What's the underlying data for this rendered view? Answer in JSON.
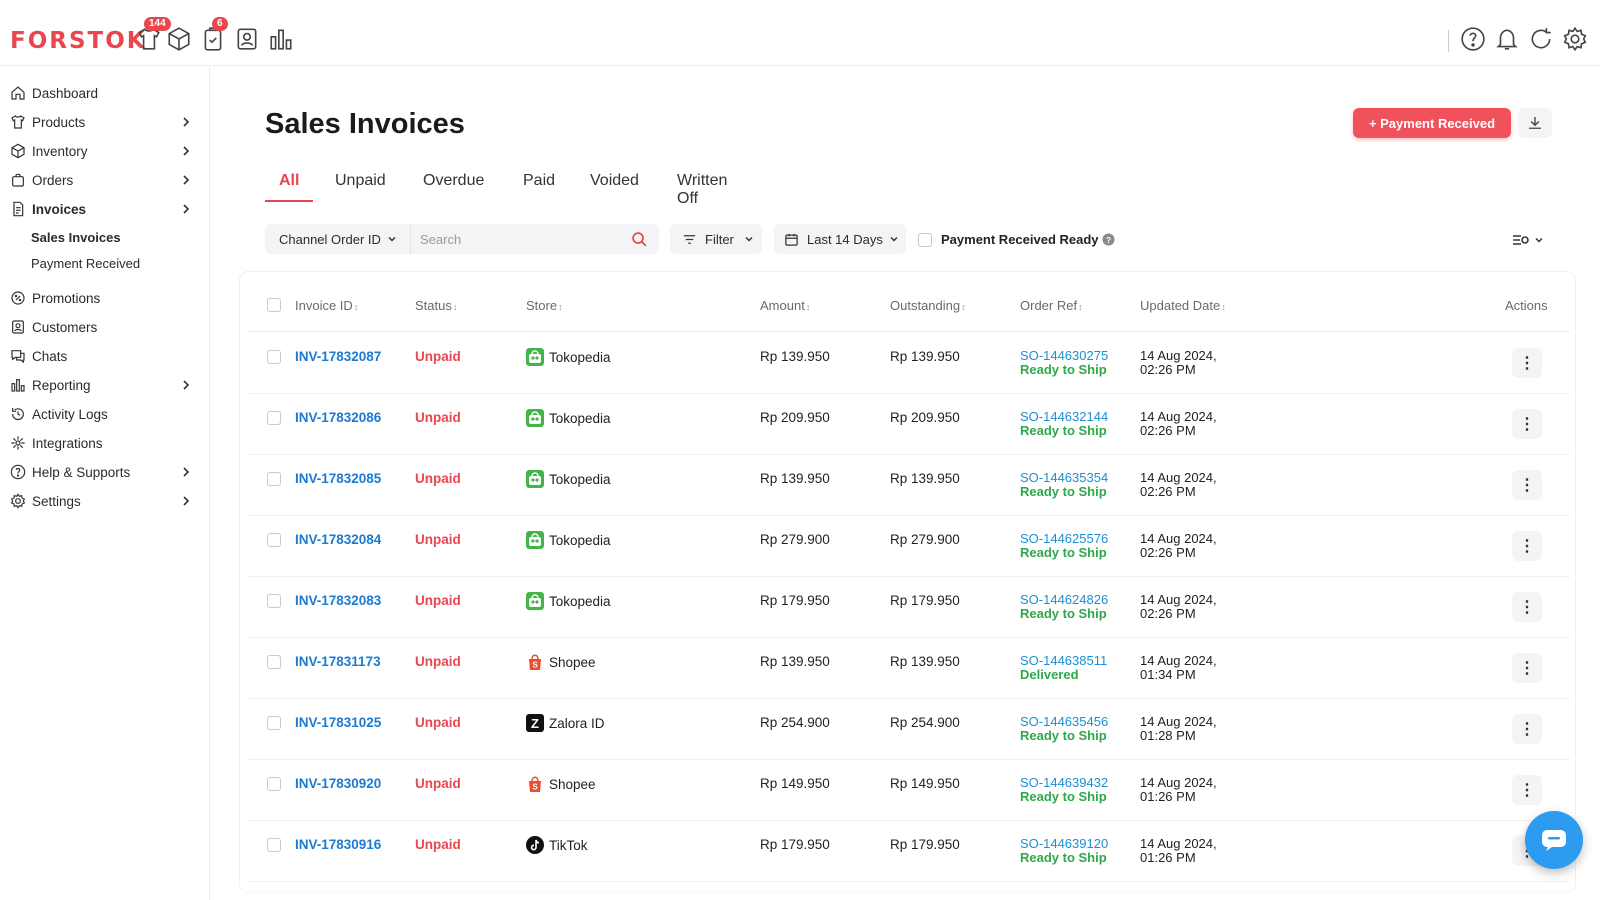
{
  "app": {
    "logo": "FORSTOK"
  },
  "topbar": {
    "icons": [
      {
        "name": "shirt-icon",
        "badge": "144"
      },
      {
        "name": "box-icon",
        "badge": ""
      },
      {
        "name": "clipboard-icon",
        "badge": "6"
      },
      {
        "name": "contact-icon",
        "badge": ""
      },
      {
        "name": "bar-chart-icon",
        "badge": ""
      }
    ],
    "right_icons": [
      "help-icon",
      "bell-icon",
      "refresh-icon",
      "gear-icon"
    ]
  },
  "sidebar": {
    "items": [
      {
        "label": "Dashboard",
        "icon": "home-icon",
        "chevron": false
      },
      {
        "label": "Products",
        "icon": "shirt-icon",
        "chevron": true
      },
      {
        "label": "Inventory",
        "icon": "box-icon",
        "chevron": true
      },
      {
        "label": "Orders",
        "icon": "bag-icon",
        "chevron": true
      },
      {
        "label": "Invoices",
        "icon": "document-icon",
        "chevron": true
      },
      {
        "label": "Promotions",
        "icon": "tag-icon",
        "chevron": false
      },
      {
        "label": "Customers",
        "icon": "contact-icon",
        "chevron": false
      },
      {
        "label": "Chats",
        "icon": "chat-icon",
        "chevron": false
      },
      {
        "label": "Reporting",
        "icon": "bar-chart-icon",
        "chevron": true
      },
      {
        "label": "Activity Logs",
        "icon": "history-icon",
        "chevron": false
      },
      {
        "label": "Integrations",
        "icon": "puzzle-icon",
        "chevron": false
      },
      {
        "label": "Help & Supports",
        "icon": "help-icon",
        "chevron": true
      },
      {
        "label": "Settings",
        "icon": "gear-icon",
        "chevron": true
      }
    ],
    "sub_items": [
      "Sales Invoices",
      "Payment Received"
    ]
  },
  "page": {
    "title": "Sales Invoices",
    "primary_button": "+ Payment Received"
  },
  "tabs": [
    "All",
    "Unpaid",
    "Overdue",
    "Paid",
    "Voided",
    "Written Off"
  ],
  "toolbar": {
    "search_type": "Channel Order ID",
    "search_placeholder": "Search",
    "filter": "Filter",
    "date_range": "Last 14 Days",
    "payment_ready": "Payment Received Ready"
  },
  "table": {
    "headers": [
      "Invoice ID",
      "Status",
      "Store",
      "Amount",
      "Outstanding",
      "Order Ref",
      "Updated Date",
      "Actions"
    ],
    "rows": [
      {
        "invoice": "INV-17832087",
        "status": "Unpaid",
        "store": "Tokopedia",
        "amount": "Rp 139.950",
        "outstanding": "Rp 139.950",
        "order_ref": "SO-144630275",
        "order_status": "Ready to Ship",
        "date1": "14 Aug 2024,",
        "date2": "02:26 PM"
      },
      {
        "invoice": "INV-17832086",
        "status": "Unpaid",
        "store": "Tokopedia",
        "amount": "Rp 209.950",
        "outstanding": "Rp 209.950",
        "order_ref": "SO-144632144",
        "order_status": "Ready to Ship",
        "date1": "14 Aug 2024,",
        "date2": "02:26 PM"
      },
      {
        "invoice": "INV-17832085",
        "status": "Unpaid",
        "store": "Tokopedia",
        "amount": "Rp 139.950",
        "outstanding": "Rp 139.950",
        "order_ref": "SO-144635354",
        "order_status": "Ready to Ship",
        "date1": "14 Aug 2024,",
        "date2": "02:26 PM"
      },
      {
        "invoice": "INV-17832084",
        "status": "Unpaid",
        "store": "Tokopedia",
        "amount": "Rp 279.900",
        "outstanding": "Rp 279.900",
        "order_ref": "SO-144625576",
        "order_status": "Ready to Ship",
        "date1": "14 Aug 2024,",
        "date2": "02:26 PM"
      },
      {
        "invoice": "INV-17832083",
        "status": "Unpaid",
        "store": "Tokopedia",
        "amount": "Rp 179.950",
        "outstanding": "Rp 179.950",
        "order_ref": "SO-144624826",
        "order_status": "Ready to Ship",
        "date1": "14 Aug 2024,",
        "date2": "02:26 PM"
      },
      {
        "invoice": "INV-17831173",
        "status": "Unpaid",
        "store": "Shopee",
        "amount": "Rp 139.950",
        "outstanding": "Rp 139.950",
        "order_ref": "SO-144638511",
        "order_status": "Delivered",
        "date1": "14 Aug 2024,",
        "date2": "01:34 PM"
      },
      {
        "invoice": "INV-17831025",
        "status": "Unpaid",
        "store": "Zalora ID",
        "amount": "Rp 254.900",
        "outstanding": "Rp 254.900",
        "order_ref": "SO-144635456",
        "order_status": "Ready to Ship",
        "date1": "14 Aug 2024,",
        "date2": "01:28 PM"
      },
      {
        "invoice": "INV-17830920",
        "status": "Unpaid",
        "store": "Shopee",
        "amount": "Rp 149.950",
        "outstanding": "Rp 149.950",
        "order_ref": "SO-144639432",
        "order_status": "Ready to Ship",
        "date1": "14 Aug 2024,",
        "date2": "01:26 PM"
      },
      {
        "invoice": "INV-17830916",
        "status": "Unpaid",
        "store": "TikTok",
        "amount": "Rp 179.950",
        "outstanding": "Rp 179.950",
        "order_ref": "SO-144639120",
        "order_status": "Ready to Ship",
        "date1": "14 Aug 2024,",
        "date2": "01:26 PM"
      }
    ]
  },
  "colors": {
    "brand": "#e8474f",
    "link": "#1c7ad1",
    "success": "#2ea84a",
    "fab": "#2d9cf0"
  }
}
